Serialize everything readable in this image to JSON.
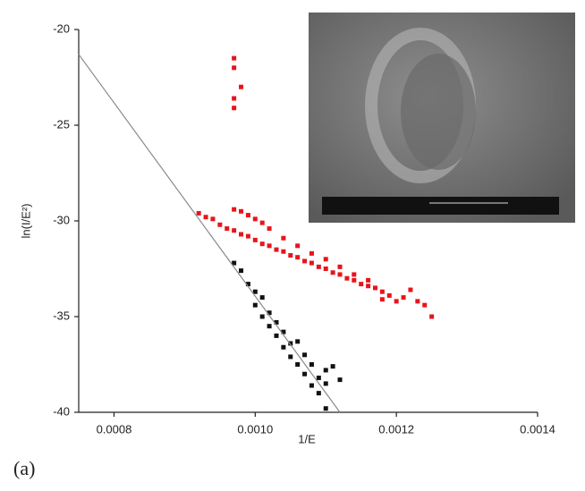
{
  "chart_data": {
    "type": "scatter",
    "x_label": "1/E",
    "y_label": "ln(I/E²)",
    "annotation": "(a)",
    "xlim": [
      0.00075,
      0.0014
    ],
    "ylim": [
      -40,
      -20
    ],
    "xticks": [
      0.0008,
      {
        "value": 0.001,
        "label": "0.0010"
      },
      0.0012,
      0.0014
    ],
    "yticks": [
      -20,
      -25,
      -30,
      -35,
      -40
    ],
    "series": [
      {
        "color": "#e8141b",
        "marker": "square",
        "x": [
          0.00092,
          0.00093,
          0.00094,
          0.00095,
          0.00096,
          0.00097,
          0.00098,
          0.00099,
          0.001,
          0.00101,
          0.00102,
          0.00103,
          0.00104,
          0.00105,
          0.00106,
          0.00107,
          0.00108,
          0.00109,
          0.0011,
          0.00111,
          0.00112,
          0.00113,
          0.00114,
          0.00115,
          0.00116,
          0.00117,
          0.00118,
          0.00097,
          0.00098,
          0.00099,
          0.001,
          0.00101,
          0.00102,
          0.00104,
          0.00106,
          0.00108,
          0.0011,
          0.00112,
          0.00114,
          0.00116,
          0.00119,
          0.0012,
          0.00121,
          0.00122,
          0.00123,
          0.00124,
          0.00125,
          0.00118,
          0.00097,
          0.00097,
          0.00098,
          0.00097,
          0.00097
        ],
        "values": [
          -29.6,
          -29.8,
          -29.9,
          -30.2,
          -30.4,
          -30.5,
          -30.7,
          -30.8,
          -31.0,
          -31.2,
          -31.3,
          -31.5,
          -31.6,
          -31.8,
          -31.9,
          -32.1,
          -32.2,
          -32.4,
          -32.5,
          -32.7,
          -32.8,
          -33.0,
          -33.1,
          -33.3,
          -33.4,
          -33.5,
          -33.7,
          -29.4,
          -29.5,
          -29.7,
          -29.9,
          -30.1,
          -30.4,
          -30.9,
          -31.3,
          -31.7,
          -32.0,
          -32.4,
          -32.8,
          -33.1,
          -33.9,
          -34.2,
          -34.0,
          -33.6,
          -34.2,
          -34.4,
          -35.0,
          -34.1,
          -21.5,
          -22.0,
          -23.0,
          -23.6,
          -24.1
        ]
      },
      {
        "color": "#111111",
        "marker": "square",
        "x": [
          0.00097,
          0.00098,
          0.00099,
          0.001,
          0.001,
          0.00101,
          0.00101,
          0.00102,
          0.00102,
          0.00103,
          0.00103,
          0.00104,
          0.00104,
          0.00105,
          0.00105,
          0.00106,
          0.00106,
          0.00107,
          0.00107,
          0.00108,
          0.00108,
          0.00109,
          0.00109,
          0.0011,
          0.0011,
          0.0011,
          0.00111,
          0.00112
        ],
        "values": [
          -32.2,
          -32.6,
          -33.3,
          -33.7,
          -34.4,
          -34.0,
          -35.0,
          -34.8,
          -35.5,
          -35.3,
          -36.0,
          -35.8,
          -36.6,
          -36.4,
          -37.1,
          -36.3,
          -37.5,
          -37.0,
          -38.0,
          -37.5,
          -38.6,
          -38.2,
          -39.0,
          -37.8,
          -38.5,
          -39.8,
          -37.6,
          -38.3
        ]
      },
      {
        "color": "#8a8a8a",
        "marker": "line",
        "x": [
          0.00075,
          0.00112
        ],
        "values": [
          -21.3,
          -40
        ]
      }
    ]
  }
}
